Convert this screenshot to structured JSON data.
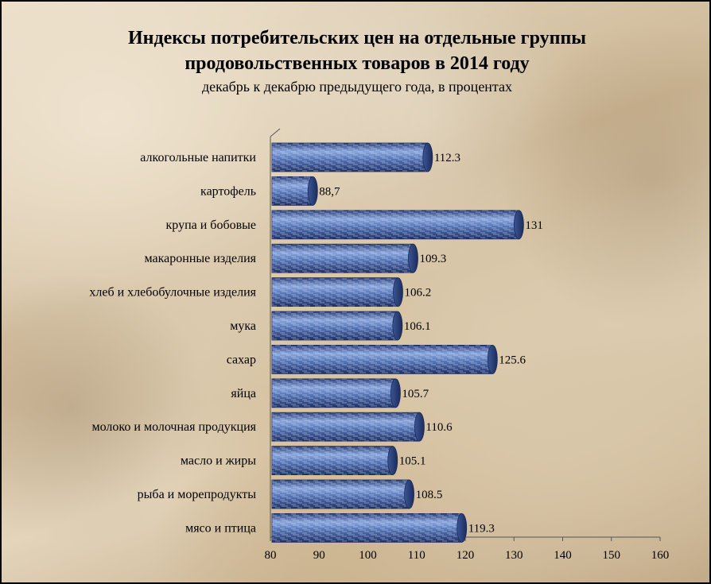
{
  "chart_data": {
    "type": "bar",
    "orientation": "horizontal",
    "title_lines": [
      "Индексы потребительских цен на отдельные группы",
      "продовольственных товаров в 2014 году"
    ],
    "subtitle": "декабрь к декабрю предыдущего года, в процентах",
    "categories": [
      "алкогольные напитки",
      "картофель",
      "крупа и бобовые",
      "макаронные изделия",
      "хлеб и хлебобулочные изделия",
      "мука",
      "сахар",
      "яйца",
      "молоко и молочная продукция",
      "масло и жиры",
      "рыба и морепродукты",
      "мясо и птица"
    ],
    "values": [
      112.3,
      88.7,
      131,
      109.3,
      106.2,
      106.1,
      125.6,
      105.7,
      110.6,
      105.1,
      108.5,
      119.3
    ],
    "value_labels": [
      "112.3",
      "88,7",
      "131",
      "109.3",
      "106.2",
      "106.1",
      "125.6",
      "105.7",
      "110.6",
      "105.1",
      "108.5",
      "119.3"
    ],
    "xlim": [
      80,
      160
    ],
    "xticks": [
      80,
      90,
      100,
      110,
      120,
      130,
      140,
      150,
      160
    ],
    "bar_color": "#4a6aa8",
    "legend": "none"
  }
}
